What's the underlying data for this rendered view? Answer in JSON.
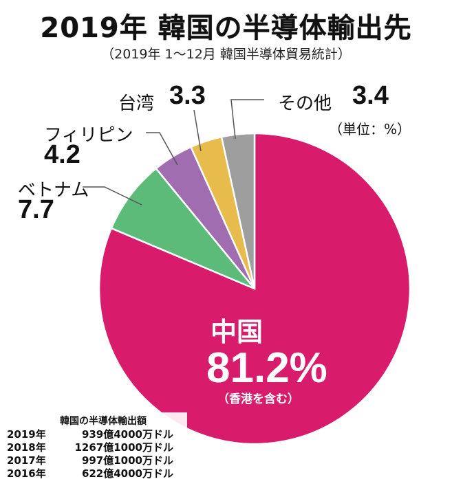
{
  "header": {
    "title": "2019年 韓国の半導体輸出先",
    "subtitle": "（2019年 1〜12月 韓国半導体貿易統計）",
    "unit": "（単位：%）"
  },
  "chart_data": {
    "type": "pie",
    "title": "2019年 韓国の半導体輸出先",
    "unit": "%",
    "slices": [
      {
        "label": "中国",
        "value": 81.2,
        "value_text": "81.2%",
        "note": "（香港を含む）",
        "color": "#d81b6b"
      },
      {
        "label": "ベトナム",
        "value": 7.7,
        "value_text": "7.7",
        "color": "#5dbb7a"
      },
      {
        "label": "フィリピン",
        "value": 4.2,
        "value_text": "4.2",
        "color": "#a06db0"
      },
      {
        "label": "台湾",
        "value": 3.3,
        "value_text": "3.3",
        "color": "#e8bb4d"
      },
      {
        "label": "その他",
        "value": 3.4,
        "value_text": "3.4",
        "color": "#9e9e9e"
      }
    ]
  },
  "exports": {
    "title": "韓国の半導体輸出額",
    "rows": [
      {
        "year": "2019年",
        "amount": "939億4000万ドル"
      },
      {
        "year": "2018年",
        "amount": "1267億1000万ドル"
      },
      {
        "year": "2017年",
        "amount": "997億1000万ドル"
      },
      {
        "year": "2016年",
        "amount": "622億4000万ドル"
      }
    ]
  }
}
